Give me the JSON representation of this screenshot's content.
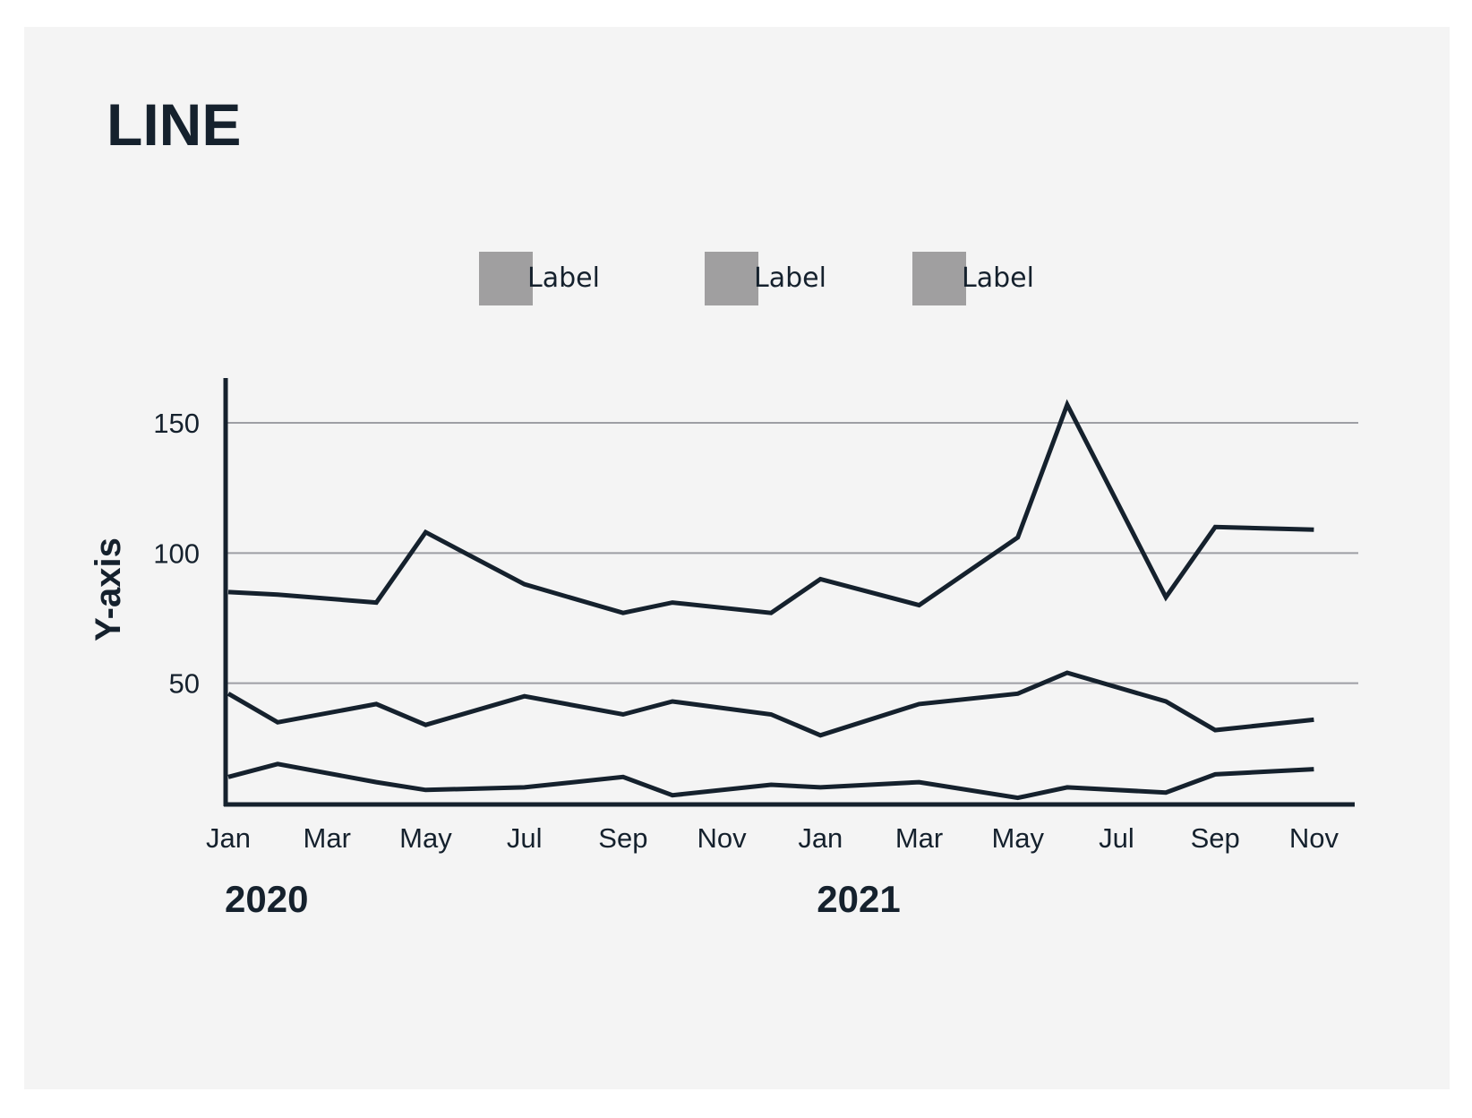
{
  "chart_data": {
    "type": "line",
    "title": "LINE",
    "ylabel": "Y-axis",
    "xlabel": "",
    "ylim": [
      0,
      175
    ],
    "yticks": [
      50,
      100,
      150
    ],
    "grid": true,
    "legend_position": "top",
    "x_tick_labels": [
      "Jan",
      "Mar",
      "May",
      "Jul",
      "Sep",
      "Nov",
      "Jan",
      "Mar",
      "May",
      "Jul",
      "Sep",
      "Nov"
    ],
    "x_tick_dates": [
      "2020-01",
      "2020-03",
      "2020-05",
      "2020-07",
      "2020-09",
      "2020-11",
      "2021-01",
      "2021-03",
      "2021-05",
      "2021-07",
      "2021-09",
      "2021-11"
    ],
    "year_labels": [
      {
        "label": "2020",
        "date": "2020-01"
      },
      {
        "label": "2021",
        "date": "2021-01"
      }
    ],
    "legend": [
      {
        "label": "Label",
        "color": "#a09fa0"
      },
      {
        "label": "Label",
        "color": "#a09fa0"
      },
      {
        "label": "Label",
        "color": "#a09fa0"
      }
    ],
    "series": [
      {
        "color": "#15212d",
        "points": [
          {
            "x": "2020-01",
            "y": 85
          },
          {
            "x": "2020-02",
            "y": 84
          },
          {
            "x": "2020-04",
            "y": 81
          },
          {
            "x": "2020-05",
            "y": 108
          },
          {
            "x": "2020-07",
            "y": 88
          },
          {
            "x": "2020-09",
            "y": 77
          },
          {
            "x": "2020-10",
            "y": 81
          },
          {
            "x": "2020-12",
            "y": 77
          },
          {
            "x": "2021-01",
            "y": 90
          },
          {
            "x": "2021-03",
            "y": 80
          },
          {
            "x": "2021-05",
            "y": 106
          },
          {
            "x": "2021-06",
            "y": 157
          },
          {
            "x": "2021-08",
            "y": 83
          },
          {
            "x": "2021-09",
            "y": 110
          },
          {
            "x": "2021-11",
            "y": 109
          }
        ]
      },
      {
        "color": "#15212d",
        "points": [
          {
            "x": "2020-01",
            "y": 46
          },
          {
            "x": "2020-02",
            "y": 35
          },
          {
            "x": "2020-04",
            "y": 42
          },
          {
            "x": "2020-05",
            "y": 34
          },
          {
            "x": "2020-07",
            "y": 45
          },
          {
            "x": "2020-09",
            "y": 38
          },
          {
            "x": "2020-10",
            "y": 43
          },
          {
            "x": "2020-12",
            "y": 38
          },
          {
            "x": "2021-01",
            "y": 30
          },
          {
            "x": "2021-03",
            "y": 42
          },
          {
            "x": "2021-05",
            "y": 46
          },
          {
            "x": "2021-06",
            "y": 54
          },
          {
            "x": "2021-08",
            "y": 43
          },
          {
            "x": "2021-09",
            "y": 32
          },
          {
            "x": "2021-11",
            "y": 36
          }
        ]
      },
      {
        "color": "#15212d",
        "points": [
          {
            "x": "2020-01",
            "y": 14
          },
          {
            "x": "2020-02",
            "y": 19
          },
          {
            "x": "2020-04",
            "y": 12
          },
          {
            "x": "2020-05",
            "y": 9
          },
          {
            "x": "2020-07",
            "y": 10
          },
          {
            "x": "2020-09",
            "y": 14
          },
          {
            "x": "2020-10",
            "y": 7
          },
          {
            "x": "2020-12",
            "y": 11
          },
          {
            "x": "2021-01",
            "y": 10
          },
          {
            "x": "2021-03",
            "y": 12
          },
          {
            "x": "2021-05",
            "y": 6
          },
          {
            "x": "2021-06",
            "y": 10
          },
          {
            "x": "2021-08",
            "y": 8
          },
          {
            "x": "2021-09",
            "y": 15
          },
          {
            "x": "2021-11",
            "y": 17
          }
        ]
      }
    ]
  }
}
